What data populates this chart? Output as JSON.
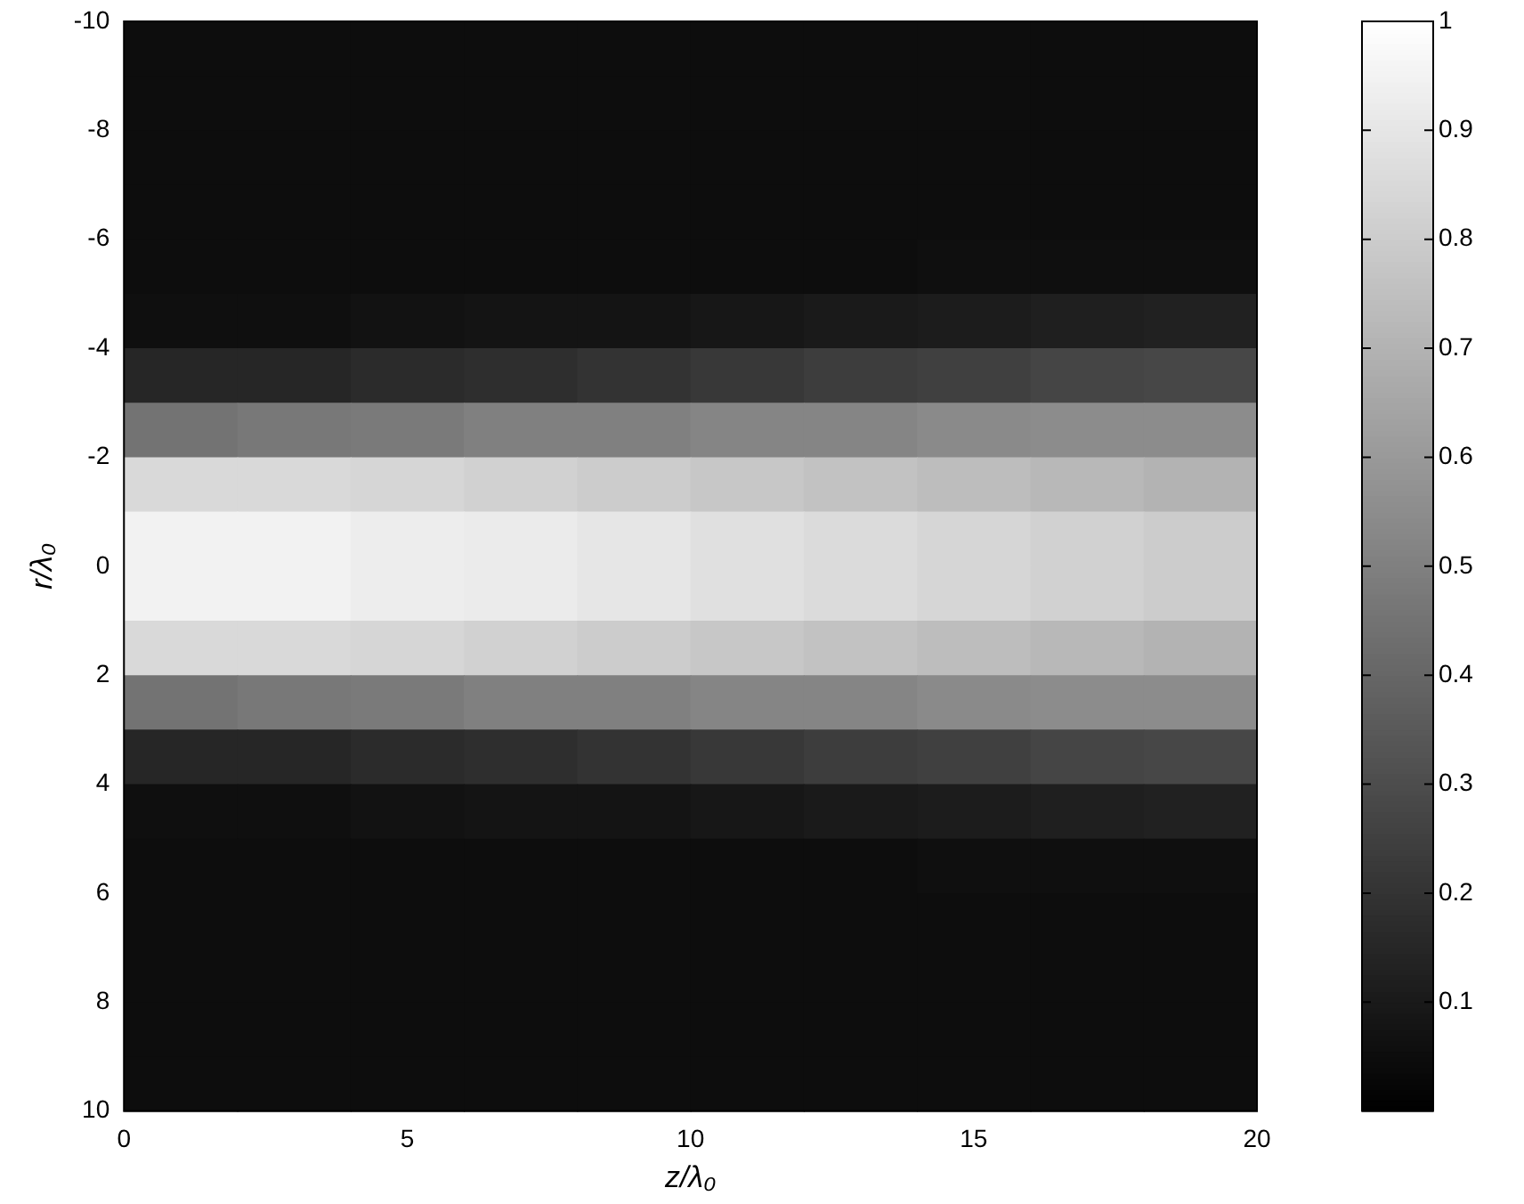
{
  "chart_data": {
    "type": "heatmap",
    "xlabel": "z/λ₀",
    "ylabel": "r/λ₀",
    "x": [
      1,
      3,
      5,
      7,
      9,
      11,
      13,
      15,
      17,
      19
    ],
    "y": [
      -9.5,
      -8.5,
      -7.5,
      -6.5,
      -5.5,
      -4.5,
      -3.5,
      -2.5,
      -1.5,
      -0.5,
      0.5,
      1.5,
      2.5,
      3.5,
      4.5,
      5.5,
      6.5,
      7.5,
      8.5,
      9.5
    ],
    "xlim": [
      0,
      20
    ],
    "xticks": [
      0,
      5,
      10,
      15,
      20
    ],
    "ylim": [
      10,
      -10
    ],
    "yticks": [
      -10,
      -8,
      -6,
      -4,
      -2,
      0,
      2,
      4,
      6,
      8,
      10
    ],
    "clim": [
      0,
      1
    ],
    "cticks": [
      0.1,
      0.2,
      0.3,
      0.4,
      0.5,
      0.6,
      0.7,
      0.8,
      0.9,
      1
    ],
    "grid": false,
    "cells": [
      [
        0.05,
        0.05,
        0.05,
        0.05,
        0.05,
        0.05,
        0.05,
        0.05,
        0.05,
        0.05
      ],
      [
        0.05,
        0.05,
        0.05,
        0.05,
        0.05,
        0.05,
        0.05,
        0.05,
        0.05,
        0.05
      ],
      [
        0.05,
        0.05,
        0.05,
        0.05,
        0.05,
        0.05,
        0.05,
        0.05,
        0.05,
        0.05
      ],
      [
        0.05,
        0.05,
        0.05,
        0.05,
        0.05,
        0.05,
        0.05,
        0.05,
        0.05,
        0.05
      ],
      [
        0.05,
        0.05,
        0.05,
        0.05,
        0.05,
        0.05,
        0.05,
        0.06,
        0.06,
        0.06
      ],
      [
        0.06,
        0.06,
        0.07,
        0.08,
        0.08,
        0.09,
        0.1,
        0.11,
        0.12,
        0.13
      ],
      [
        0.15,
        0.15,
        0.17,
        0.18,
        0.2,
        0.22,
        0.24,
        0.25,
        0.27,
        0.28
      ],
      [
        0.45,
        0.47,
        0.48,
        0.5,
        0.5,
        0.52,
        0.52,
        0.54,
        0.55,
        0.55
      ],
      [
        0.85,
        0.85,
        0.84,
        0.82,
        0.8,
        0.78,
        0.76,
        0.74,
        0.72,
        0.7
      ],
      [
        0.95,
        0.95,
        0.93,
        0.92,
        0.9,
        0.88,
        0.86,
        0.84,
        0.82,
        0.8
      ],
      [
        0.95,
        0.95,
        0.93,
        0.92,
        0.9,
        0.88,
        0.86,
        0.84,
        0.82,
        0.8
      ],
      [
        0.85,
        0.85,
        0.84,
        0.82,
        0.8,
        0.78,
        0.76,
        0.74,
        0.72,
        0.7
      ],
      [
        0.45,
        0.47,
        0.48,
        0.5,
        0.5,
        0.52,
        0.52,
        0.54,
        0.55,
        0.55
      ],
      [
        0.15,
        0.15,
        0.17,
        0.18,
        0.2,
        0.22,
        0.24,
        0.25,
        0.27,
        0.28
      ],
      [
        0.06,
        0.06,
        0.07,
        0.08,
        0.08,
        0.09,
        0.1,
        0.11,
        0.12,
        0.13
      ],
      [
        0.05,
        0.05,
        0.05,
        0.05,
        0.05,
        0.05,
        0.05,
        0.06,
        0.06,
        0.06
      ],
      [
        0.05,
        0.05,
        0.05,
        0.05,
        0.05,
        0.05,
        0.05,
        0.05,
        0.05,
        0.05
      ],
      [
        0.05,
        0.05,
        0.05,
        0.05,
        0.05,
        0.05,
        0.05,
        0.05,
        0.05,
        0.05
      ],
      [
        0.05,
        0.05,
        0.05,
        0.05,
        0.05,
        0.05,
        0.05,
        0.05,
        0.05,
        0.05
      ],
      [
        0.05,
        0.05,
        0.05,
        0.05,
        0.05,
        0.05,
        0.05,
        0.05,
        0.05,
        0.05
      ]
    ]
  }
}
